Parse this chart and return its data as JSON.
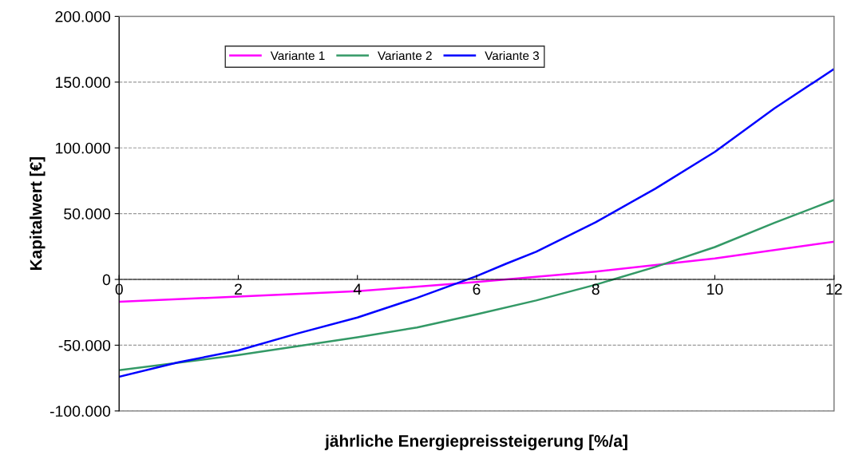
{
  "chart_data": {
    "type": "line",
    "xlabel": "jährliche Energiepreissteigerung [%/a]",
    "ylabel": "Kapitalwert [€]",
    "xlim": [
      0,
      12
    ],
    "xticks": [
      0,
      2,
      4,
      6,
      8,
      10,
      12
    ],
    "ylim": [
      -100000,
      200000
    ],
    "yticks": [
      {
        "value": -100000,
        "label": "-100.000"
      },
      {
        "value": -50000,
        "label": "-50.000"
      },
      {
        "value": 0,
        "label": "0"
      },
      {
        "value": 50000,
        "label": "50.000"
      },
      {
        "value": 100000,
        "label": "100.000"
      },
      {
        "value": 150000,
        "label": "150.000"
      },
      {
        "value": 200000,
        "label": "200.000"
      }
    ],
    "grid": "y",
    "legend": "top left",
    "marker": "none",
    "line_style": "solid",
    "series": [
      {
        "name": "Variante 1",
        "color": "#ff00ff",
        "x": [
          0,
          2,
          4,
          6,
          8,
          10,
          12
        ],
        "values": [
          -17000,
          -13000,
          -9000,
          -2000,
          6000,
          16000,
          28700
        ]
      },
      {
        "name": "Variante 2",
        "color": "#339966",
        "x": [
          0,
          2,
          4,
          5,
          6,
          7,
          8,
          9,
          10,
          11,
          12
        ],
        "values": [
          -69000,
          -57500,
          -44000,
          -36500,
          -26500,
          -16000,
          -4000,
          9500,
          24600,
          43000,
          60400
        ]
      },
      {
        "name": "Variante 3",
        "color": "#0000ff",
        "x": [
          0,
          1,
          2,
          3,
          4,
          5,
          6,
          6.5,
          7,
          8,
          9,
          10,
          11,
          12
        ],
        "values": [
          -74000,
          -63000,
          -54000,
          -41000,
          -29000,
          -14000,
          2500,
          12000,
          21000,
          43500,
          69000,
          97000,
          130000,
          160000
        ]
      }
    ]
  }
}
